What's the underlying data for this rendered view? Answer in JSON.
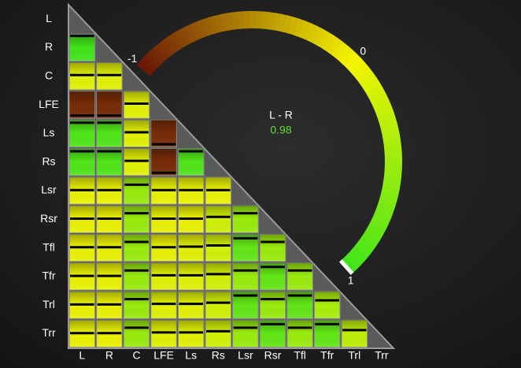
{
  "chart_data": {
    "type": "heatmap",
    "channels": [
      "L",
      "R",
      "C",
      "LFE",
      "Ls",
      "Rs",
      "Lsr",
      "Rsr",
      "Tfl",
      "Tfr",
      "Trl",
      "Trr"
    ],
    "values": [
      [],
      [
        0.98
      ],
      [
        0.1,
        0.1
      ],
      [
        -0.9,
        -0.9,
        0.1
      ],
      [
        0.9,
        0.9,
        0.1,
        -0.9
      ],
      [
        0.9,
        0.9,
        0.1,
        -0.9,
        0.9
      ],
      [
        0.05,
        0.05,
        0.5,
        0.05,
        0.05,
        0.05
      ],
      [
        0.05,
        0.05,
        0.5,
        0.05,
        0.05,
        0.2,
        0.5
      ],
      [
        0.05,
        0.05,
        0.5,
        0.05,
        0.1,
        0.2,
        0.8,
        0.5
      ],
      [
        0.05,
        0.05,
        0.5,
        0.1,
        0.1,
        0.2,
        0.5,
        0.8,
        0.5
      ],
      [
        0.05,
        0.05,
        0.5,
        0.1,
        0.1,
        0.2,
        0.8,
        0.5,
        0.8,
        0.4
      ],
      [
        0.05,
        0.05,
        0.5,
        0.1,
        0.1,
        0.2,
        0.5,
        0.8,
        0.5,
        0.8,
        0.3
      ]
    ],
    "lim": [
      -1,
      1
    ],
    "color_scale": [
      "#6a1608",
      "#f4f400",
      "#3ee41c"
    ],
    "gauge": {
      "label": "L - R",
      "value": 0.98,
      "ticks": [
        -1,
        0,
        1
      ]
    }
  }
}
